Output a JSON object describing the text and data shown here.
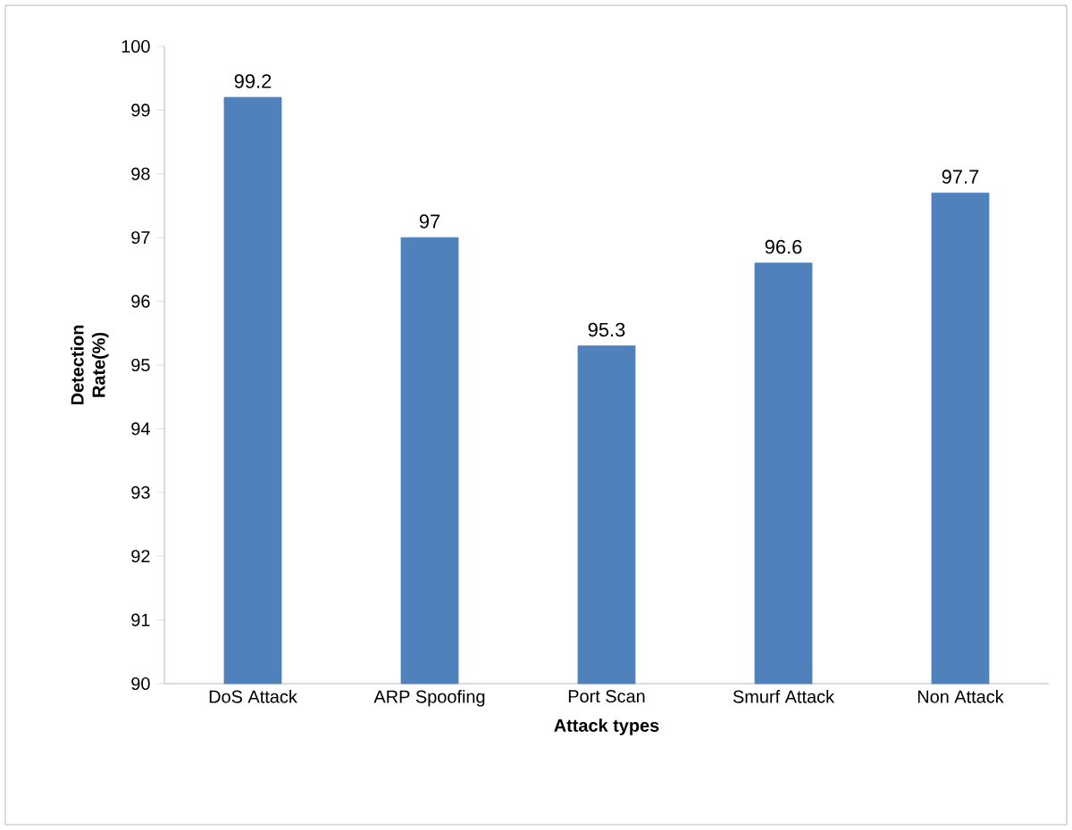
{
  "chart_data": {
    "type": "bar",
    "xlabel": "Attack types",
    "ylabel": "Detection Rate(%)",
    "categories": [
      "DoS Attack",
      "ARP Spoofing",
      "Port Scan",
      "Smurf Attack",
      "Non Attack"
    ],
    "values": [
      99.2,
      97,
      95.3,
      96.6,
      97.7
    ],
    "color": "#4f81bd",
    "ylim": [
      90,
      100
    ],
    "yticks": [
      90,
      91,
      92,
      93,
      94,
      95,
      96,
      97,
      98,
      99,
      100
    ],
    "data_labels": true
  }
}
